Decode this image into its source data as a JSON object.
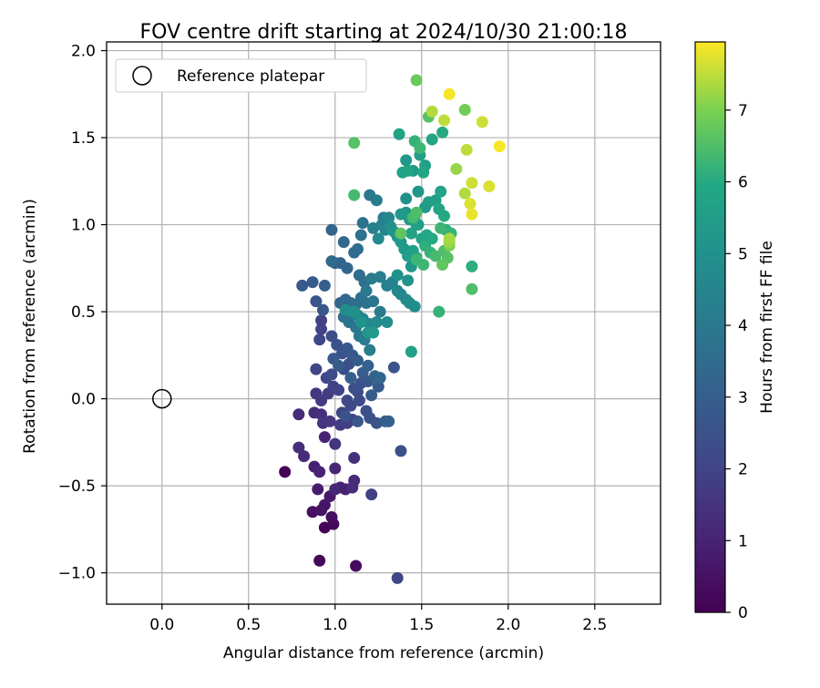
{
  "chart_data": {
    "type": "scatter",
    "title": "FOV centre drift starting at 2024/10/30 21:00:18",
    "xlabel": "Angular distance from reference (arcmin)",
    "ylabel": "Rotation from reference (arcmin)",
    "xlim": [
      -0.32,
      2.88
    ],
    "ylim": [
      -1.18,
      2.05
    ],
    "xticks": [
      "0.0",
      "0.5",
      "1.0",
      "1.5",
      "2.0",
      "2.5"
    ],
    "xtick_values": [
      0.0,
      0.5,
      1.0,
      1.5,
      2.0,
      2.5
    ],
    "yticks": [
      "−1.0",
      "−0.5",
      "0.0",
      "0.5",
      "1.0",
      "1.5",
      "2.0"
    ],
    "ytick_values": [
      -1.0,
      -0.5,
      0.0,
      0.5,
      1.0,
      1.5,
      2.0
    ],
    "grid": true,
    "legend": {
      "placement": "top-left",
      "entries": [
        "Reference platepar"
      ]
    },
    "reference_point": {
      "x": 0.0,
      "y": 0.0,
      "label": "Reference platepar"
    },
    "colorbar": {
      "label": "Hours from first FF file",
      "colormap": "viridis",
      "range": [
        0,
        7.95
      ],
      "ticks": [
        "0",
        "1",
        "2",
        "3",
        "4",
        "5",
        "6",
        "7"
      ],
      "tick_values": [
        0,
        1,
        2,
        3,
        4,
        5,
        6,
        7
      ]
    },
    "points": [
      [
        0.71,
        -0.42,
        0.05
      ],
      [
        0.91,
        -0.93,
        0.2
      ],
      [
        1.12,
        -0.96,
        0.3
      ],
      [
        0.94,
        -0.74,
        0.15
      ],
      [
        0.99,
        -0.72,
        0.25
      ],
      [
        0.98,
        -0.68,
        0.35
      ],
      [
        0.87,
        -0.65,
        0.4
      ],
      [
        0.92,
        -0.64,
        0.5
      ],
      [
        0.94,
        -0.61,
        0.6
      ],
      [
        0.97,
        -0.56,
        0.7
      ],
      [
        0.9,
        -0.52,
        0.8
      ],
      [
        1.03,
        -0.51,
        0.9
      ],
      [
        1.06,
        -0.52,
        1.0
      ],
      [
        1.0,
        -0.52,
        1.1
      ],
      [
        1.11,
        -0.47,
        1.2
      ],
      [
        1.1,
        -0.51,
        1.3
      ],
      [
        0.88,
        -0.39,
        0.9
      ],
      [
        0.91,
        -0.42,
        1.0
      ],
      [
        1.0,
        -0.4,
        1.1
      ],
      [
        0.82,
        -0.33,
        1.2
      ],
      [
        0.79,
        -0.28,
        1.3
      ],
      [
        1.11,
        -0.34,
        1.4
      ],
      [
        1.0,
        -0.26,
        1.5
      ],
      [
        0.94,
        -0.22,
        1.0
      ],
      [
        1.21,
        -0.55,
        1.9
      ],
      [
        0.79,
        -0.09,
        1.2
      ],
      [
        0.88,
        -0.08,
        1.3
      ],
      [
        0.92,
        -0.09,
        1.4
      ],
      [
        0.93,
        -0.14,
        1.5
      ],
      [
        0.97,
        -0.13,
        1.6
      ],
      [
        1.03,
        -0.15,
        1.7
      ],
      [
        1.07,
        -0.14,
        1.8
      ],
      [
        1.1,
        -0.12,
        1.9
      ],
      [
        1.04,
        -0.08,
        2.0
      ],
      [
        0.89,
        0.03,
        1.6
      ],
      [
        0.92,
        -0.01,
        1.7
      ],
      [
        0.96,
        0.03,
        1.8
      ],
      [
        0.99,
        0.07,
        1.9
      ],
      [
        1.02,
        0.05,
        2.0
      ],
      [
        1.07,
        -0.01,
        2.1
      ],
      [
        1.09,
        -0.04,
        2.2
      ],
      [
        1.14,
        -0.01,
        2.3
      ],
      [
        1.18,
        -0.07,
        2.4
      ],
      [
        1.2,
        -0.11,
        2.5
      ],
      [
        1.24,
        -0.14,
        2.6
      ],
      [
        1.13,
        0.04,
        2.2
      ],
      [
        0.89,
        0.17,
        2.0
      ],
      [
        0.95,
        0.12,
        2.1
      ],
      [
        0.98,
        0.14,
        2.2
      ],
      [
        1.05,
        0.17,
        2.3
      ],
      [
        1.08,
        0.2,
        2.4
      ],
      [
        1.11,
        0.06,
        2.5
      ],
      [
        1.15,
        0.09,
        2.6
      ],
      [
        1.19,
        0.1,
        2.7
      ],
      [
        1.25,
        0.07,
        2.8
      ],
      [
        1.21,
        0.02,
        2.9
      ],
      [
        1.29,
        -0.13,
        3.0
      ],
      [
        1.31,
        -0.13,
        3.1
      ],
      [
        1.06,
        -0.1,
        2.6
      ],
      [
        1.13,
        -0.13,
        2.7
      ],
      [
        1.38,
        -0.3,
        2.5
      ],
      [
        1.36,
        -1.03,
        2.1
      ],
      [
        1.34,
        0.18,
        2.6
      ],
      [
        0.92,
        0.4,
        2.0
      ],
      [
        0.91,
        0.34,
        2.1
      ],
      [
        0.92,
        0.45,
        1.9
      ],
      [
        0.98,
        0.36,
        2.4
      ],
      [
        1.01,
        0.31,
        2.5
      ],
      [
        1.04,
        0.26,
        2.6
      ],
      [
        1.07,
        0.29,
        2.7
      ],
      [
        1.1,
        0.25,
        2.8
      ],
      [
        1.13,
        0.22,
        2.9
      ],
      [
        1.16,
        0.15,
        3.0
      ],
      [
        1.19,
        0.19,
        3.1
      ],
      [
        1.23,
        0.13,
        3.2
      ],
      [
        1.26,
        0.12,
        3.3
      ],
      [
        0.99,
        0.23,
        2.8
      ],
      [
        1.02,
        0.19,
        2.9
      ],
      [
        1.09,
        0.12,
        3.0
      ],
      [
        0.89,
        0.56,
        2.6
      ],
      [
        0.93,
        0.51,
        2.7
      ],
      [
        0.81,
        0.65,
        2.8
      ],
      [
        0.87,
        0.67,
        2.9
      ],
      [
        0.94,
        0.65,
        3.0
      ],
      [
        1.0,
        0.78,
        3.1
      ],
      [
        1.03,
        0.78,
        3.2
      ],
      [
        1.07,
        0.75,
        3.3
      ],
      [
        0.98,
        0.79,
        3.4
      ],
      [
        1.14,
        0.71,
        3.5
      ],
      [
        1.17,
        0.67,
        3.6
      ],
      [
        1.03,
        0.55,
        3.3
      ],
      [
        1.06,
        0.57,
        3.4
      ],
      [
        1.09,
        0.55,
        3.5
      ],
      [
        1.12,
        0.54,
        3.6
      ],
      [
        1.15,
        0.58,
        3.7
      ],
      [
        1.18,
        0.55,
        3.8
      ],
      [
        1.22,
        0.56,
        3.9
      ],
      [
        1.26,
        0.5,
        4.0
      ],
      [
        1.05,
        0.47,
        3.7
      ],
      [
        1.08,
        0.44,
        3.8
      ],
      [
        1.12,
        0.41,
        3.9
      ],
      [
        1.14,
        0.36,
        4.0
      ],
      [
        1.17,
        0.34,
        4.1
      ],
      [
        1.2,
        0.28,
        4.2
      ],
      [
        1.1,
        0.49,
        4.3
      ],
      [
        1.13,
        0.48,
        4.4
      ],
      [
        1.16,
        0.46,
        4.5
      ],
      [
        1.2,
        0.43,
        4.6
      ],
      [
        1.24,
        0.44,
        4.7
      ],
      [
        1.3,
        0.44,
        4.8
      ],
      [
        1.06,
        0.51,
        4.9
      ],
      [
        1.11,
        0.5,
        5.0
      ],
      [
        1.15,
        0.44,
        5.1
      ],
      [
        1.19,
        0.38,
        5.2
      ],
      [
        1.22,
        0.38,
        5.3
      ],
      [
        0.98,
        0.97,
        3.2
      ],
      [
        1.05,
        0.9,
        3.4
      ],
      [
        1.11,
        0.84,
        3.5
      ],
      [
        1.13,
        0.86,
        3.6
      ],
      [
        1.15,
        0.94,
        3.7
      ],
      [
        1.16,
        1.01,
        3.8
      ],
      [
        1.2,
        1.17,
        4.0
      ],
      [
        1.24,
        1.14,
        4.1
      ],
      [
        1.28,
        1.04,
        4.2
      ],
      [
        1.22,
        0.98,
        4.3
      ],
      [
        1.27,
        1.0,
        4.4
      ],
      [
        1.29,
        0.97,
        4.5
      ],
      [
        1.31,
        1.04,
        4.6
      ],
      [
        1.25,
        0.92,
        4.7
      ],
      [
        1.18,
        0.62,
        4.0
      ],
      [
        1.21,
        0.69,
        4.1
      ],
      [
        1.26,
        0.7,
        4.2
      ],
      [
        1.3,
        0.65,
        4.3
      ],
      [
        1.33,
        0.67,
        4.4
      ],
      [
        1.36,
        0.62,
        4.5
      ],
      [
        1.38,
        0.6,
        4.6
      ],
      [
        1.41,
        0.57,
        4.7
      ],
      [
        1.43,
        0.55,
        4.8
      ],
      [
        1.46,
        0.53,
        4.9
      ],
      [
        1.36,
        0.71,
        5.0
      ],
      [
        1.42,
        0.68,
        5.1
      ],
      [
        1.44,
        0.76,
        5.2
      ],
      [
        1.47,
        0.81,
        5.3
      ],
      [
        1.32,
        0.99,
        5.0
      ],
      [
        1.34,
        0.96,
        5.1
      ],
      [
        1.36,
        0.93,
        5.2
      ],
      [
        1.38,
        0.9,
        5.3
      ],
      [
        1.4,
        0.86,
        5.4
      ],
      [
        1.42,
        0.82,
        5.5
      ],
      [
        1.45,
        0.85,
        5.6
      ],
      [
        1.41,
        1.15,
        5.0
      ],
      [
        1.41,
        1.07,
        5.2
      ],
      [
        1.38,
        1.06,
        5.3
      ],
      [
        1.43,
        1.03,
        5.4
      ],
      [
        1.46,
        1.05,
        5.5
      ],
      [
        1.47,
        1.0,
        5.6
      ],
      [
        1.44,
        0.95,
        5.7
      ],
      [
        1.5,
        0.92,
        5.8
      ],
      [
        1.53,
        0.94,
        5.9
      ],
      [
        1.56,
        0.92,
        6.0
      ],
      [
        1.52,
        0.88,
        6.1
      ],
      [
        1.55,
        0.84,
        6.2
      ],
      [
        1.51,
        0.77,
        6.3
      ],
      [
        1.58,
        0.82,
        6.4
      ],
      [
        1.63,
        0.85,
        6.5
      ],
      [
        1.65,
        0.81,
        6.6
      ],
      [
        1.62,
        0.77,
        6.7
      ],
      [
        1.48,
        1.0,
        5.6
      ],
      [
        1.48,
        1.19,
        5.2
      ],
      [
        1.52,
        1.1,
        5.4
      ],
      [
        1.54,
        1.13,
        5.5
      ],
      [
        1.58,
        1.14,
        5.6
      ],
      [
        1.61,
        1.19,
        5.8
      ],
      [
        1.6,
        1.09,
        5.9
      ],
      [
        1.63,
        1.05,
        6.0
      ],
      [
        1.64,
        0.97,
        6.1
      ],
      [
        1.67,
        0.95,
        6.2
      ],
      [
        1.61,
        0.98,
        6.3
      ],
      [
        1.41,
        1.37,
        5.3
      ],
      [
        1.45,
        1.31,
        5.4
      ],
      [
        1.49,
        1.4,
        5.5
      ],
      [
        1.52,
        1.34,
        5.6
      ],
      [
        1.39,
        1.3,
        5.7
      ],
      [
        1.42,
        1.31,
        5.8
      ],
      [
        1.51,
        1.3,
        5.9
      ],
      [
        1.37,
        1.52,
        5.7
      ],
      [
        1.56,
        1.49,
        5.8
      ],
      [
        1.62,
        1.53,
        6.0
      ],
      [
        1.46,
        1.48,
        6.2
      ],
      [
        1.49,
        1.44,
        6.3
      ],
      [
        1.79,
        0.76,
        6.1
      ],
      [
        1.79,
        0.63,
        6.5
      ],
      [
        1.6,
        0.5,
        6.2
      ],
      [
        1.44,
        0.27,
        5.6
      ],
      [
        1.47,
        0.8,
        6.3
      ],
      [
        1.38,
        0.95,
        6.7
      ],
      [
        1.45,
        1.04,
        6.4
      ],
      [
        1.47,
        1.07,
        6.5
      ],
      [
        1.66,
        0.88,
        7.0
      ],
      [
        1.66,
        0.91,
        7.1
      ],
      [
        1.66,
        0.9,
        7.2
      ],
      [
        1.66,
        0.92,
        7.3
      ],
      [
        1.11,
        1.17,
        6.4
      ],
      [
        1.11,
        1.47,
        6.6
      ],
      [
        1.54,
        1.62,
        6.6
      ],
      [
        1.47,
        1.83,
        6.8
      ],
      [
        1.56,
        1.65,
        7.4
      ],
      [
        1.63,
        1.6,
        7.5
      ],
      [
        1.66,
        1.75,
        7.9
      ],
      [
        1.75,
        1.66,
        6.9
      ],
      [
        1.76,
        1.43,
        7.5
      ],
      [
        1.7,
        1.32,
        7.2
      ],
      [
        1.79,
        1.24,
        7.6
      ],
      [
        1.75,
        1.18,
        7.4
      ],
      [
        1.78,
        1.12,
        7.7
      ],
      [
        1.79,
        1.06,
        7.8
      ],
      [
        1.85,
        1.59,
        7.6
      ],
      [
        1.89,
        1.22,
        7.7
      ],
      [
        1.95,
        1.45,
        7.9
      ]
    ]
  }
}
